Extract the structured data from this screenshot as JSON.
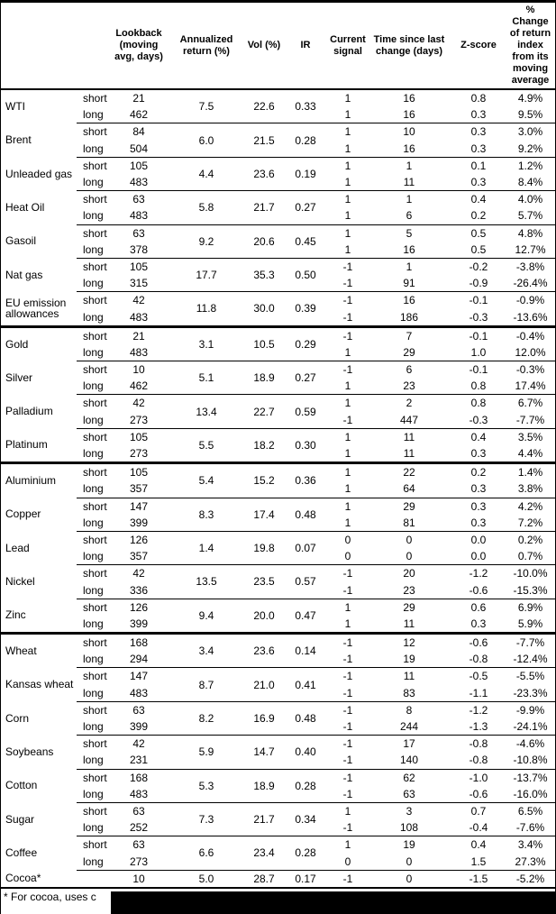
{
  "table": {
    "columns": [
      {
        "key": "lookback",
        "label": "Lookback (moving avg, days)"
      },
      {
        "key": "annret",
        "label": "Annualized return (%)"
      },
      {
        "key": "vol",
        "label": "Vol (%)"
      },
      {
        "key": "ir",
        "label": "IR"
      },
      {
        "key": "signal",
        "label": "Current signal"
      },
      {
        "key": "time",
        "label": "Time since last change (days)"
      },
      {
        "key": "zscore",
        "label": "Z-score"
      },
      {
        "key": "pct",
        "label": "% Change of return index from its moving average"
      }
    ],
    "sections": [
      {
        "commodities": [
          {
            "name": "WTI",
            "annualized_return": "7.5",
            "vol": "22.6",
            "ir": "0.33",
            "rows": [
              {
                "pos": "short",
                "lookback": "21",
                "signal": "1",
                "time_since": "16",
                "z_score": "0.8",
                "pct_change": "4.9%"
              },
              {
                "pos": "long",
                "lookback": "462",
                "signal": "1",
                "time_since": "16",
                "z_score": "0.3",
                "pct_change": "9.5%"
              }
            ]
          },
          {
            "name": "Brent",
            "annualized_return": "6.0",
            "vol": "21.5",
            "ir": "0.28",
            "rows": [
              {
                "pos": "short",
                "lookback": "84",
                "signal": "1",
                "time_since": "10",
                "z_score": "0.3",
                "pct_change": "3.0%"
              },
              {
                "pos": "long",
                "lookback": "504",
                "signal": "1",
                "time_since": "16",
                "z_score": "0.3",
                "pct_change": "9.2%"
              }
            ]
          },
          {
            "name": "Unleaded gas",
            "annualized_return": "4.4",
            "vol": "23.6",
            "ir": "0.19",
            "rows": [
              {
                "pos": "short",
                "lookback": "105",
                "signal": "1",
                "time_since": "1",
                "z_score": "0.1",
                "pct_change": "1.2%"
              },
              {
                "pos": "long",
                "lookback": "483",
                "signal": "1",
                "time_since": "11",
                "z_score": "0.3",
                "pct_change": "8.4%"
              }
            ]
          },
          {
            "name": "Heat Oil",
            "annualized_return": "5.8",
            "vol": "21.7",
            "ir": "0.27",
            "rows": [
              {
                "pos": "short",
                "lookback": "63",
                "signal": "1",
                "time_since": "1",
                "z_score": "0.4",
                "pct_change": "4.0%"
              },
              {
                "pos": "long",
                "lookback": "483",
                "signal": "1",
                "time_since": "6",
                "z_score": "0.2",
                "pct_change": "5.7%"
              }
            ]
          },
          {
            "name": "Gasoil",
            "annualized_return": "9.2",
            "vol": "20.6",
            "ir": "0.45",
            "rows": [
              {
                "pos": "short",
                "lookback": "63",
                "signal": "1",
                "time_since": "5",
                "z_score": "0.5",
                "pct_change": "4.8%"
              },
              {
                "pos": "long",
                "lookback": "378",
                "signal": "1",
                "time_since": "16",
                "z_score": "0.5",
                "pct_change": "12.7%"
              }
            ]
          },
          {
            "name": "Nat gas",
            "annualized_return": "17.7",
            "vol": "35.3",
            "ir": "0.50",
            "rows": [
              {
                "pos": "short",
                "lookback": "105",
                "signal": "-1",
                "time_since": "1",
                "z_score": "-0.2",
                "pct_change": "-3.8%"
              },
              {
                "pos": "long",
                "lookback": "315",
                "signal": "-1",
                "time_since": "91",
                "z_score": "-0.9",
                "pct_change": "-26.4%"
              }
            ]
          },
          {
            "name": "EU emission allowances",
            "annualized_return": "11.8",
            "vol": "30.0",
            "ir": "0.39",
            "rows": [
              {
                "pos": "short",
                "lookback": "42",
                "signal": "-1",
                "time_since": "16",
                "z_score": "-0.1",
                "pct_change": "-0.9%"
              },
              {
                "pos": "long",
                "lookback": "483",
                "signal": "-1",
                "time_since": "186",
                "z_score": "-0.3",
                "pct_change": "-13.6%"
              }
            ]
          }
        ]
      },
      {
        "commodities": [
          {
            "name": "Gold",
            "annualized_return": "3.1",
            "vol": "10.5",
            "ir": "0.29",
            "rows": [
              {
                "pos": "short",
                "lookback": "21",
                "signal": "-1",
                "time_since": "7",
                "z_score": "-0.1",
                "pct_change": "-0.4%"
              },
              {
                "pos": "long",
                "lookback": "483",
                "signal": "1",
                "time_since": "29",
                "z_score": "1.0",
                "pct_change": "12.0%"
              }
            ]
          },
          {
            "name": "Silver",
            "annualized_return": "5.1",
            "vol": "18.9",
            "ir": "0.27",
            "rows": [
              {
                "pos": "short",
                "lookback": "10",
                "signal": "-1",
                "time_since": "6",
                "z_score": "-0.1",
                "pct_change": "-0.3%"
              },
              {
                "pos": "long",
                "lookback": "462",
                "signal": "1",
                "time_since": "23",
                "z_score": "0.8",
                "pct_change": "17.4%"
              }
            ]
          },
          {
            "name": "Palladium",
            "annualized_return": "13.4",
            "vol": "22.7",
            "ir": "0.59",
            "rows": [
              {
                "pos": "short",
                "lookback": "42",
                "signal": "1",
                "time_since": "2",
                "z_score": "0.8",
                "pct_change": "6.7%"
              },
              {
                "pos": "long",
                "lookback": "273",
                "signal": "-1",
                "time_since": "447",
                "z_score": "-0.3",
                "pct_change": "-7.7%"
              }
            ]
          },
          {
            "name": "Platinum",
            "annualized_return": "5.5",
            "vol": "18.2",
            "ir": "0.30",
            "rows": [
              {
                "pos": "short",
                "lookback": "105",
                "signal": "1",
                "time_since": "11",
                "z_score": "0.4",
                "pct_change": "3.5%"
              },
              {
                "pos": "long",
                "lookback": "273",
                "signal": "1",
                "time_since": "11",
                "z_score": "0.3",
                "pct_change": "4.4%"
              }
            ]
          }
        ]
      },
      {
        "commodities": [
          {
            "name": "Aluminium",
            "annualized_return": "5.4",
            "vol": "15.2",
            "ir": "0.36",
            "rows": [
              {
                "pos": "short",
                "lookback": "105",
                "signal": "1",
                "time_since": "22",
                "z_score": "0.2",
                "pct_change": "1.4%"
              },
              {
                "pos": "long",
                "lookback": "357",
                "signal": "1",
                "time_since": "64",
                "z_score": "0.3",
                "pct_change": "3.8%"
              }
            ]
          },
          {
            "name": "Copper",
            "annualized_return": "8.3",
            "vol": "17.4",
            "ir": "0.48",
            "rows": [
              {
                "pos": "short",
                "lookback": "147",
                "signal": "1",
                "time_since": "29",
                "z_score": "0.3",
                "pct_change": "4.2%"
              },
              {
                "pos": "long",
                "lookback": "399",
                "signal": "1",
                "time_since": "81",
                "z_score": "0.3",
                "pct_change": "7.2%"
              }
            ]
          },
          {
            "name": "Lead",
            "annualized_return": "1.4",
            "vol": "19.8",
            "ir": "0.07",
            "rows": [
              {
                "pos": "short",
                "lookback": "126",
                "signal": "0",
                "time_since": "0",
                "z_score": "0.0",
                "pct_change": "0.2%"
              },
              {
                "pos": "long",
                "lookback": "357",
                "signal": "0",
                "time_since": "0",
                "z_score": "0.0",
                "pct_change": "0.7%"
              }
            ]
          },
          {
            "name": "Nickel",
            "annualized_return": "13.5",
            "vol": "23.5",
            "ir": "0.57",
            "rows": [
              {
                "pos": "short",
                "lookback": "42",
                "signal": "-1",
                "time_since": "20",
                "z_score": "-1.2",
                "pct_change": "-10.0%"
              },
              {
                "pos": "long",
                "lookback": "336",
                "signal": "-1",
                "time_since": "23",
                "z_score": "-0.6",
                "pct_change": "-15.3%"
              }
            ]
          },
          {
            "name": "Zinc",
            "annualized_return": "9.4",
            "vol": "20.0",
            "ir": "0.47",
            "rows": [
              {
                "pos": "short",
                "lookback": "126",
                "signal": "1",
                "time_since": "29",
                "z_score": "0.6",
                "pct_change": "6.9%"
              },
              {
                "pos": "long",
                "lookback": "399",
                "signal": "1",
                "time_since": "11",
                "z_score": "0.3",
                "pct_change": "5.9%"
              }
            ]
          }
        ]
      },
      {
        "commodities": [
          {
            "name": "Wheat",
            "annualized_return": "3.4",
            "vol": "23.6",
            "ir": "0.14",
            "rows": [
              {
                "pos": "short",
                "lookback": "168",
                "signal": "-1",
                "time_since": "12",
                "z_score": "-0.6",
                "pct_change": "-7.7%"
              },
              {
                "pos": "long",
                "lookback": "294",
                "signal": "-1",
                "time_since": "19",
                "z_score": "-0.8",
                "pct_change": "-12.4%"
              }
            ]
          },
          {
            "name": "Kansas wheat",
            "annualized_return": "8.7",
            "vol": "21.0",
            "ir": "0.41",
            "rows": [
              {
                "pos": "short",
                "lookback": "147",
                "signal": "-1",
                "time_since": "11",
                "z_score": "-0.5",
                "pct_change": "-5.5%"
              },
              {
                "pos": "long",
                "lookback": "483",
                "signal": "-1",
                "time_since": "83",
                "z_score": "-1.1",
                "pct_change": "-23.3%"
              }
            ]
          },
          {
            "name": "Corn",
            "annualized_return": "8.2",
            "vol": "16.9",
            "ir": "0.48",
            "rows": [
              {
                "pos": "short",
                "lookback": "63",
                "signal": "-1",
                "time_since": "8",
                "z_score": "-1.2",
                "pct_change": "-9.9%"
              },
              {
                "pos": "long",
                "lookback": "399",
                "signal": "-1",
                "time_since": "244",
                "z_score": "-1.3",
                "pct_change": "-24.1%"
              }
            ]
          },
          {
            "name": "Soybeans",
            "annualized_return": "5.9",
            "vol": "14.7",
            "ir": "0.40",
            "rows": [
              {
                "pos": "short",
                "lookback": "42",
                "signal": "-1",
                "time_since": "17",
                "z_score": "-0.8",
                "pct_change": "-4.6%"
              },
              {
                "pos": "long",
                "lookback": "231",
                "signal": "-1",
                "time_since": "140",
                "z_score": "-0.8",
                "pct_change": "-10.8%"
              }
            ]
          },
          {
            "name": "Cotton",
            "annualized_return": "5.3",
            "vol": "18.9",
            "ir": "0.28",
            "rows": [
              {
                "pos": "short",
                "lookback": "168",
                "signal": "-1",
                "time_since": "62",
                "z_score": "-1.0",
                "pct_change": "-13.7%"
              },
              {
                "pos": "long",
                "lookback": "483",
                "signal": "-1",
                "time_since": "63",
                "z_score": "-0.6",
                "pct_change": "-16.0%"
              }
            ]
          },
          {
            "name": "Sugar",
            "annualized_return": "7.3",
            "vol": "21.7",
            "ir": "0.34",
            "rows": [
              {
                "pos": "short",
                "lookback": "63",
                "signal": "1",
                "time_since": "3",
                "z_score": "0.7",
                "pct_change": "6.5%"
              },
              {
                "pos": "long",
                "lookback": "252",
                "signal": "-1",
                "time_since": "108",
                "z_score": "-0.4",
                "pct_change": "-7.6%"
              }
            ]
          },
          {
            "name": "Coffee",
            "annualized_return": "6.6",
            "vol": "23.4",
            "ir": "0.28",
            "rows": [
              {
                "pos": "short",
                "lookback": "63",
                "signal": "1",
                "time_since": "19",
                "z_score": "0.4",
                "pct_change": "3.4%"
              },
              {
                "pos": "long",
                "lookback": "273",
                "signal": "0",
                "time_since": "0",
                "z_score": "1.5",
                "pct_change": "27.3%"
              }
            ]
          },
          {
            "name": "Cocoa*",
            "annualized_return": "5.0",
            "vol": "28.7",
            "ir": "0.17",
            "rows": [
              {
                "pos": "",
                "lookback": "10",
                "signal": "-1",
                "time_since": "0",
                "z_score": "-1.5",
                "pct_change": "-5.2%"
              }
            ]
          }
        ]
      }
    ]
  },
  "footnote": {
    "text": "* For cocoa, uses c",
    "redacted": true
  },
  "colors": {
    "text": "#000000",
    "background": "#ffffff",
    "rule": "#000000",
    "redaction": "#000000"
  }
}
